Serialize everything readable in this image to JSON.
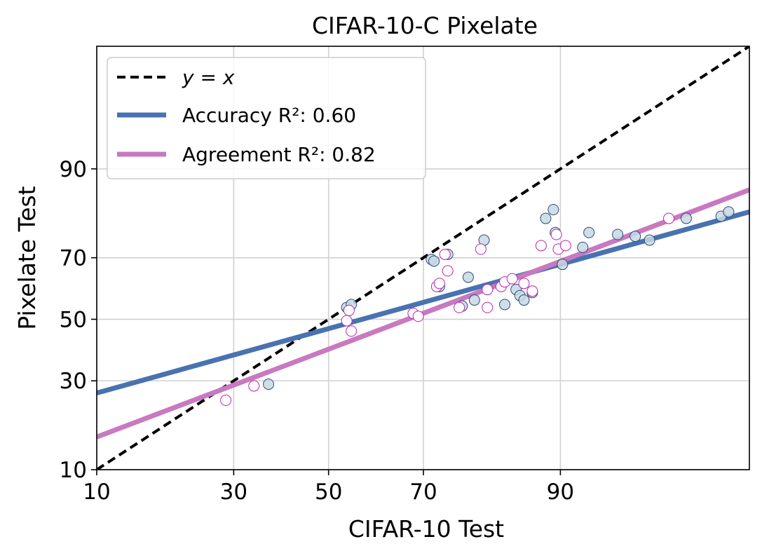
{
  "chart_data": {
    "type": "scatter",
    "title": "CIFAR-10-C Pixelate",
    "xlabel": "CIFAR-10 Test",
    "ylabel": "Pixelate Test",
    "scale": "probit (non-linear axis spacing)",
    "xlim": [
      10,
      99
    ],
    "ylim": [
      10,
      99
    ],
    "xticks": [
      10,
      30,
      50,
      70,
      90
    ],
    "yticks": [
      10,
      30,
      50,
      70,
      90
    ],
    "grid": true,
    "legend": {
      "placement": "top-left",
      "entries": [
        {
          "label": "y = x",
          "style": "dashed",
          "color": "#000000"
        },
        {
          "label": "Accuracy R²: 0.60",
          "style": "solid",
          "color": "#4872b0"
        },
        {
          "label": "Agreement R²: 0.82",
          "style": "solid",
          "color": "#c879c0"
        }
      ]
    },
    "lines": [
      {
        "name": "y = x",
        "color": "#000000",
        "dashed": true,
        "points": [
          [
            10,
            10
          ],
          [
            99,
            99
          ]
        ]
      },
      {
        "name": "Accuracy fit",
        "color": "#4872b0",
        "dashed": false,
        "points": [
          [
            10,
            26.5
          ],
          [
            99,
            82.0
          ]
        ]
      },
      {
        "name": "Agreement fit",
        "color": "#c879c0",
        "dashed": false,
        "points": [
          [
            10,
            15.8
          ],
          [
            99,
            86.5
          ]
        ]
      }
    ],
    "series": [
      {
        "name": "Accuracy",
        "marker_fill": "#c7d9e3",
        "marker_edge": "#2f4a7a",
        "points": [
          [
            37.0,
            29.0
          ],
          [
            54.0,
            54.0
          ],
          [
            55.0,
            55.0
          ],
          [
            71.5,
            69.5
          ],
          [
            72.0,
            69.0
          ],
          [
            73.0,
            61.0
          ],
          [
            74.5,
            71.0
          ],
          [
            77.0,
            54.5
          ],
          [
            78.0,
            64.0
          ],
          [
            79.0,
            56.5
          ],
          [
            80.5,
            75.0
          ],
          [
            83.5,
            55.0
          ],
          [
            85.0,
            60.0
          ],
          [
            85.5,
            58.0
          ],
          [
            86.0,
            56.5
          ],
          [
            87.0,
            59.0
          ],
          [
            88.5,
            80.5
          ],
          [
            89.3,
            82.5
          ],
          [
            89.5,
            77.0
          ],
          [
            90.2,
            68.0
          ],
          [
            92.0,
            73.0
          ],
          [
            92.5,
            77.0
          ],
          [
            94.5,
            76.5
          ],
          [
            95.5,
            76.0
          ],
          [
            96.2,
            75.0
          ],
          [
            97.6,
            80.5
          ],
          [
            98.5,
            81.0
          ],
          [
            98.65,
            82.0
          ]
        ]
      },
      {
        "name": "Agreement",
        "marker_fill": "#ffffff",
        "marker_edge": "#c022b0",
        "points": [
          [
            28.5,
            24.5
          ],
          [
            34.0,
            28.5
          ],
          [
            54.0,
            49.5
          ],
          [
            54.5,
            53.0
          ],
          [
            55.0,
            46.0
          ],
          [
            68.0,
            52.0
          ],
          [
            69.0,
            51.0
          ],
          [
            72.5,
            61.0
          ],
          [
            73.0,
            62.0
          ],
          [
            74.0,
            71.0
          ],
          [
            74.5,
            66.0
          ],
          [
            76.5,
            54.0
          ],
          [
            80.0,
            72.5
          ],
          [
            81.0,
            54.0
          ],
          [
            81.0,
            60.0
          ],
          [
            83.0,
            61.0
          ],
          [
            83.5,
            62.5
          ],
          [
            84.5,
            63.5
          ],
          [
            86.0,
            62.0
          ],
          [
            87.0,
            59.5
          ],
          [
            88.0,
            73.5
          ],
          [
            89.6,
            76.5
          ],
          [
            89.8,
            72.5
          ],
          [
            90.5,
            73.5
          ],
          [
            97.0,
            80.5
          ]
        ]
      }
    ]
  }
}
